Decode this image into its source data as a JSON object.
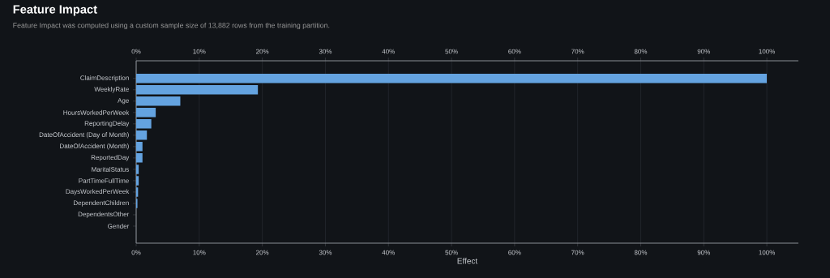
{
  "chart_data": {
    "type": "bar",
    "orientation": "horizontal",
    "title": "Feature Impact",
    "subtitle": "Feature Impact was computed using a custom sample size of 13,882 rows from the training partition.",
    "xlabel": "Effect",
    "categories": [
      "ClaimDescription",
      "WeeklyRate",
      "Age",
      "HoursWorkedPerWeek",
      "ReportingDelay",
      "DateOfAccident (Day of Month)",
      "DateOfAccident (Month)",
      "ReportedDay",
      "MaritalStatus",
      "PartTimeFullTime",
      "DaysWorkedPerWeek",
      "DependentChildren",
      "DependentsOther",
      "Gender"
    ],
    "values": [
      100,
      19.3,
      7.0,
      3.1,
      2.4,
      1.7,
      1.0,
      1.0,
      0.4,
      0.4,
      0.3,
      0.2,
      0,
      0
    ],
    "color": "#64a3e0",
    "xlim": [
      0,
      105
    ],
    "xticks": [
      {
        "value": 0,
        "label": "0%"
      },
      {
        "value": 10,
        "label": "10%"
      },
      {
        "value": 20,
        "label": "20%"
      },
      {
        "value": 30,
        "label": "30%"
      },
      {
        "value": 40,
        "label": "40%"
      },
      {
        "value": 50,
        "label": "50%"
      },
      {
        "value": 60,
        "label": "60%"
      },
      {
        "value": 70,
        "label": "70%"
      },
      {
        "value": 80,
        "label": "80%"
      },
      {
        "value": 90,
        "label": "90%"
      },
      {
        "value": 100,
        "label": "100%"
      }
    ],
    "x2lim": [
      0,
      105
    ],
    "x2ticks": [
      {
        "value": 0,
        "label": "0%"
      },
      {
        "value": 10,
        "label": "10%"
      },
      {
        "value": 20,
        "label": "20%"
      },
      {
        "value": 30,
        "label": "30%"
      },
      {
        "value": 40,
        "label": "40%"
      },
      {
        "value": 50,
        "label": "50%"
      },
      {
        "value": 60,
        "label": "60%"
      },
      {
        "value": 70,
        "label": "70%"
      },
      {
        "value": 80,
        "label": "80%"
      },
      {
        "value": 90,
        "label": "90%"
      },
      {
        "value": 100,
        "label": "100%"
      }
    ],
    "grid": "x"
  }
}
